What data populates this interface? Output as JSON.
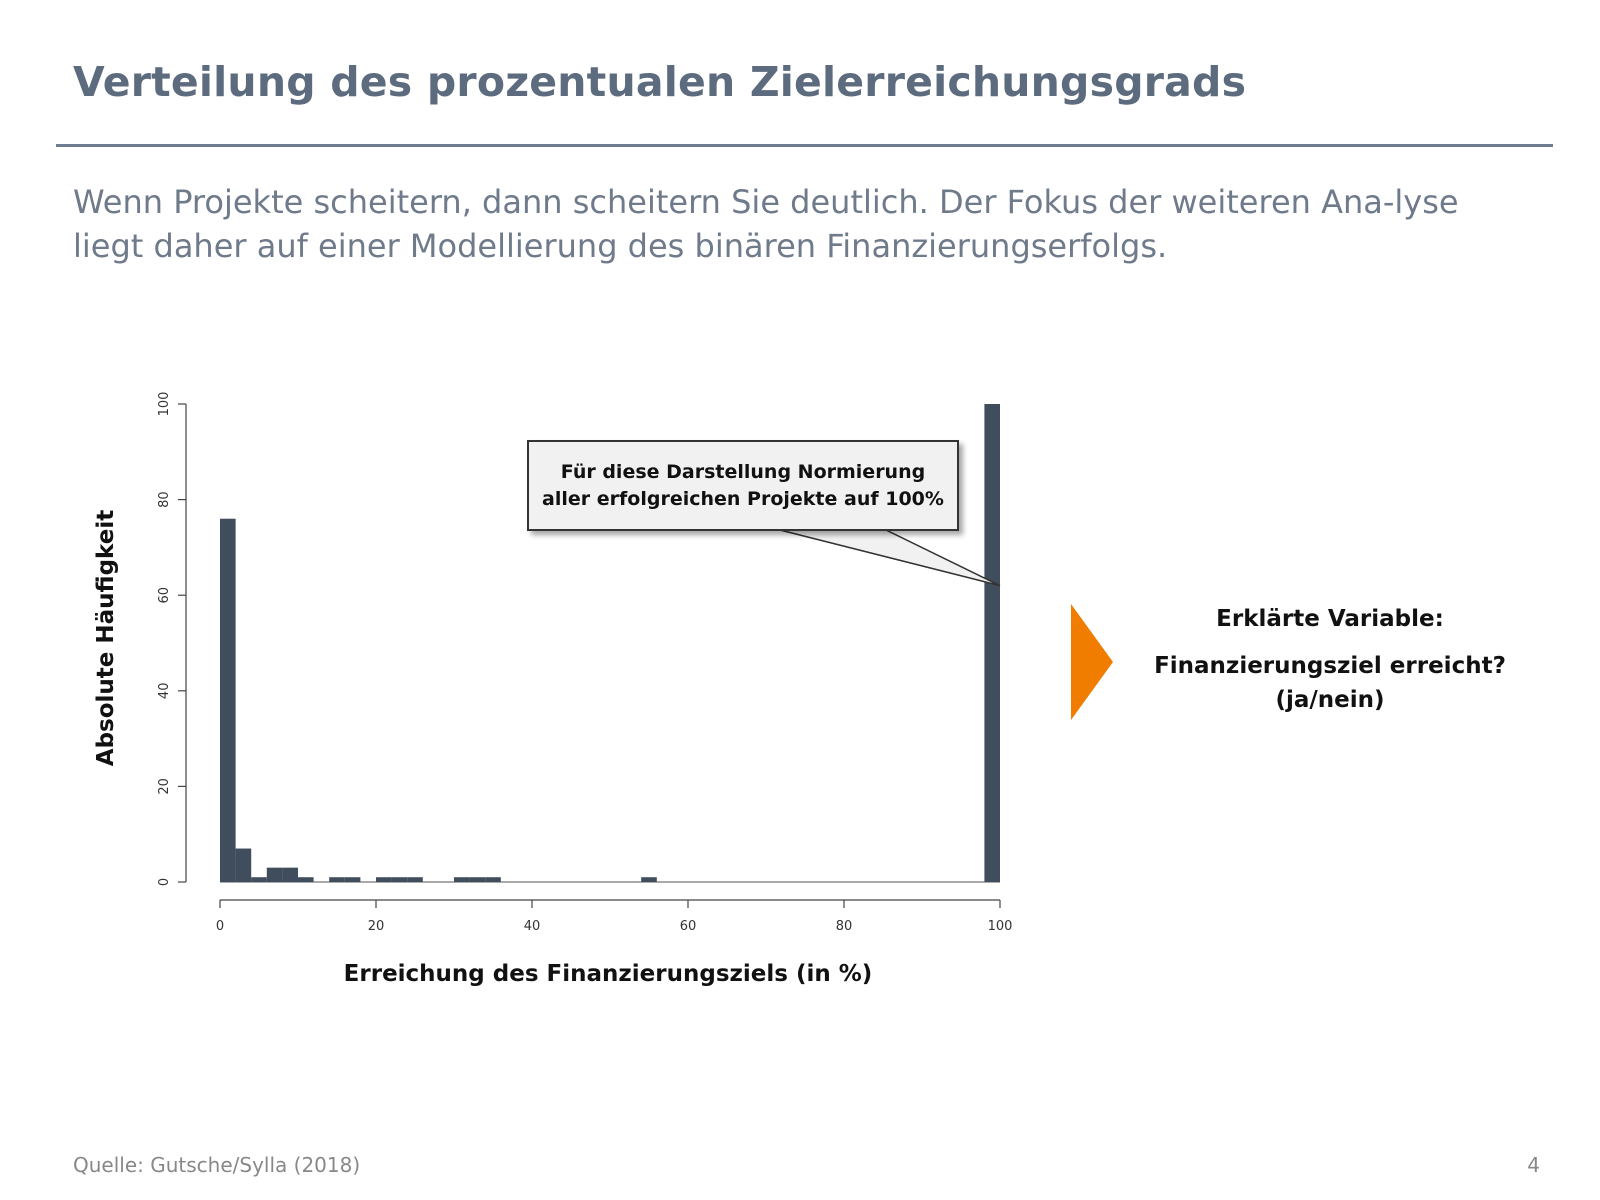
{
  "slide": {
    "title": "Verteilung des prozentualen Zielerreichungsgrads",
    "subtitle": "Wenn Projekte scheitern, dann scheitern Sie deutlich. Der Fokus der weiteren Ana-lyse liegt daher auf einer Modellierung des binären Finanzierungserfolgs.",
    "source": "Quelle: Gutsche/Sylla (2018)",
    "page_number": "4"
  },
  "callout": {
    "text": "Für diese Darstellung Normierung aller erfolgreichen Projekte auf 100%"
  },
  "explained_variable": {
    "label": "Erklärte Variable:",
    "value": "Finanzierungsziel erreicht? (ja/nein)"
  },
  "colors": {
    "bar": "#3f4d5c",
    "accent_arrow": "#f07d00",
    "title": "#5d6b7f"
  },
  "chart_data": {
    "type": "bar",
    "xlabel": "Erreichung des Finanzierungsziels (in %)",
    "ylabel": "Absolute Häufigkeit",
    "xlim": [
      0,
      100
    ],
    "ylim": [
      0,
      100
    ],
    "x_ticks": [
      "0",
      "20",
      "40",
      "60",
      "80",
      "100"
    ],
    "y_ticks": [
      "0",
      "20",
      "40",
      "60",
      "80",
      "100"
    ],
    "grid": false,
    "bins": [
      {
        "start": 0,
        "end": 2,
        "value": 76
      },
      {
        "start": 2,
        "end": 4,
        "value": 7
      },
      {
        "start": 4,
        "end": 6,
        "value": 1
      },
      {
        "start": 6,
        "end": 8,
        "value": 3
      },
      {
        "start": 8,
        "end": 10,
        "value": 3
      },
      {
        "start": 10,
        "end": 12,
        "value": 1
      },
      {
        "start": 14,
        "end": 16,
        "value": 1
      },
      {
        "start": 16,
        "end": 18,
        "value": 1
      },
      {
        "start": 20,
        "end": 22,
        "value": 1
      },
      {
        "start": 22,
        "end": 24,
        "value": 1
      },
      {
        "start": 24,
        "end": 26,
        "value": 1
      },
      {
        "start": 30,
        "end": 32,
        "value": 1
      },
      {
        "start": 32,
        "end": 34,
        "value": 1
      },
      {
        "start": 34,
        "end": 36,
        "value": 1
      },
      {
        "start": 54,
        "end": 56,
        "value": 1
      },
      {
        "start": 98,
        "end": 100,
        "value": 100
      }
    ],
    "annotation_target": {
      "x": 100,
      "y": 62
    }
  }
}
